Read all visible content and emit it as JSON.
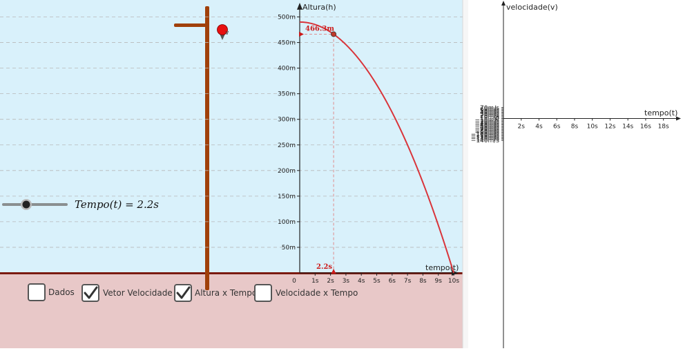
{
  "slider": {
    "label": "Tempo(t) = 2.2s",
    "value": 2.2,
    "min": 0,
    "max": 10
  },
  "checkboxes": [
    {
      "label": "Dados",
      "checked": false
    },
    {
      "label": "Vetor Velocidade",
      "checked": true
    },
    {
      "label": "Altura x Tempo",
      "checked": true
    },
    {
      "label": "Velocidade x Tempo",
      "checked": false
    }
  ],
  "colors": {
    "sky": "#d9f1fb",
    "ground": "#e8c8c8",
    "ground_line": "#7a1a10",
    "tower": "#a0400a",
    "ball": "#e81010",
    "curve": "#d9343a",
    "annotation": "#cc1a1a"
  },
  "chart_data": [
    {
      "type": "line",
      "xlabel": "tempo(t)",
      "ylabel": "Altura(h)",
      "xlim": [
        0,
        10.2
      ],
      "ylim": [
        0,
        500
      ],
      "x_ticks": [
        0,
        1,
        2,
        3,
        4,
        5,
        6,
        7,
        8,
        9,
        10
      ],
      "x_tick_labels": [
        "0",
        "1s",
        "2s",
        "3s",
        "4s",
        "5s",
        "6s",
        "7s",
        "8s",
        "9s",
        "10s"
      ],
      "y_ticks": [
        50,
        100,
        150,
        200,
        250,
        300,
        350,
        400,
        450,
        500
      ],
      "y_tick_labels": [
        "50m",
        "100m",
        "150m",
        "200m",
        "250m",
        "300m",
        "350m",
        "400m",
        "450m",
        "500m"
      ],
      "grid": "horizontal-dashed",
      "series": [
        {
          "function": "h(t) = 490 - 4.9 t^2",
          "t_range": [
            0,
            10
          ]
        }
      ],
      "point": {
        "t": 2.2,
        "h": 466.3
      },
      "annotations": [
        "466.3m",
        "2.2s"
      ]
    },
    {
      "type": "line",
      "xlabel": "tempo(t)",
      "ylabel": "velocidade(v)",
      "xlim": [
        0,
        19
      ],
      "ylim": [
        -140,
        70
      ],
      "x_ticks": [
        2,
        4,
        6,
        8,
        10,
        12,
        14,
        16,
        18
      ],
      "x_tick_labels": [
        "2s",
        "4s",
        "6s",
        "8s",
        "10s",
        "12s",
        "14s",
        "16s",
        "18s"
      ],
      "y_ticks": [
        70,
        60,
        50,
        40,
        30,
        20,
        10,
        0,
        -10,
        -20,
        -30,
        -40,
        -50,
        -60,
        -70,
        -80,
        -90,
        -100,
        -110,
        -120,
        -130,
        -140
      ],
      "y_tick_labels": [
        "70m/s",
        "60m/s",
        "50m/s",
        "40m/s",
        "30m/s",
        "20m/s",
        "10m/s",
        "0",
        "−10m/s",
        "−20m/s",
        "−30m/s",
        "−40m/s",
        "−50m/s",
        "−60m/s",
        "−70m/s",
        "−80m/s",
        "−90m/s",
        "−100m/s",
        "−110m/s",
        "−120m/s",
        "−130m/s",
        "−140m/s"
      ],
      "series": []
    }
  ]
}
